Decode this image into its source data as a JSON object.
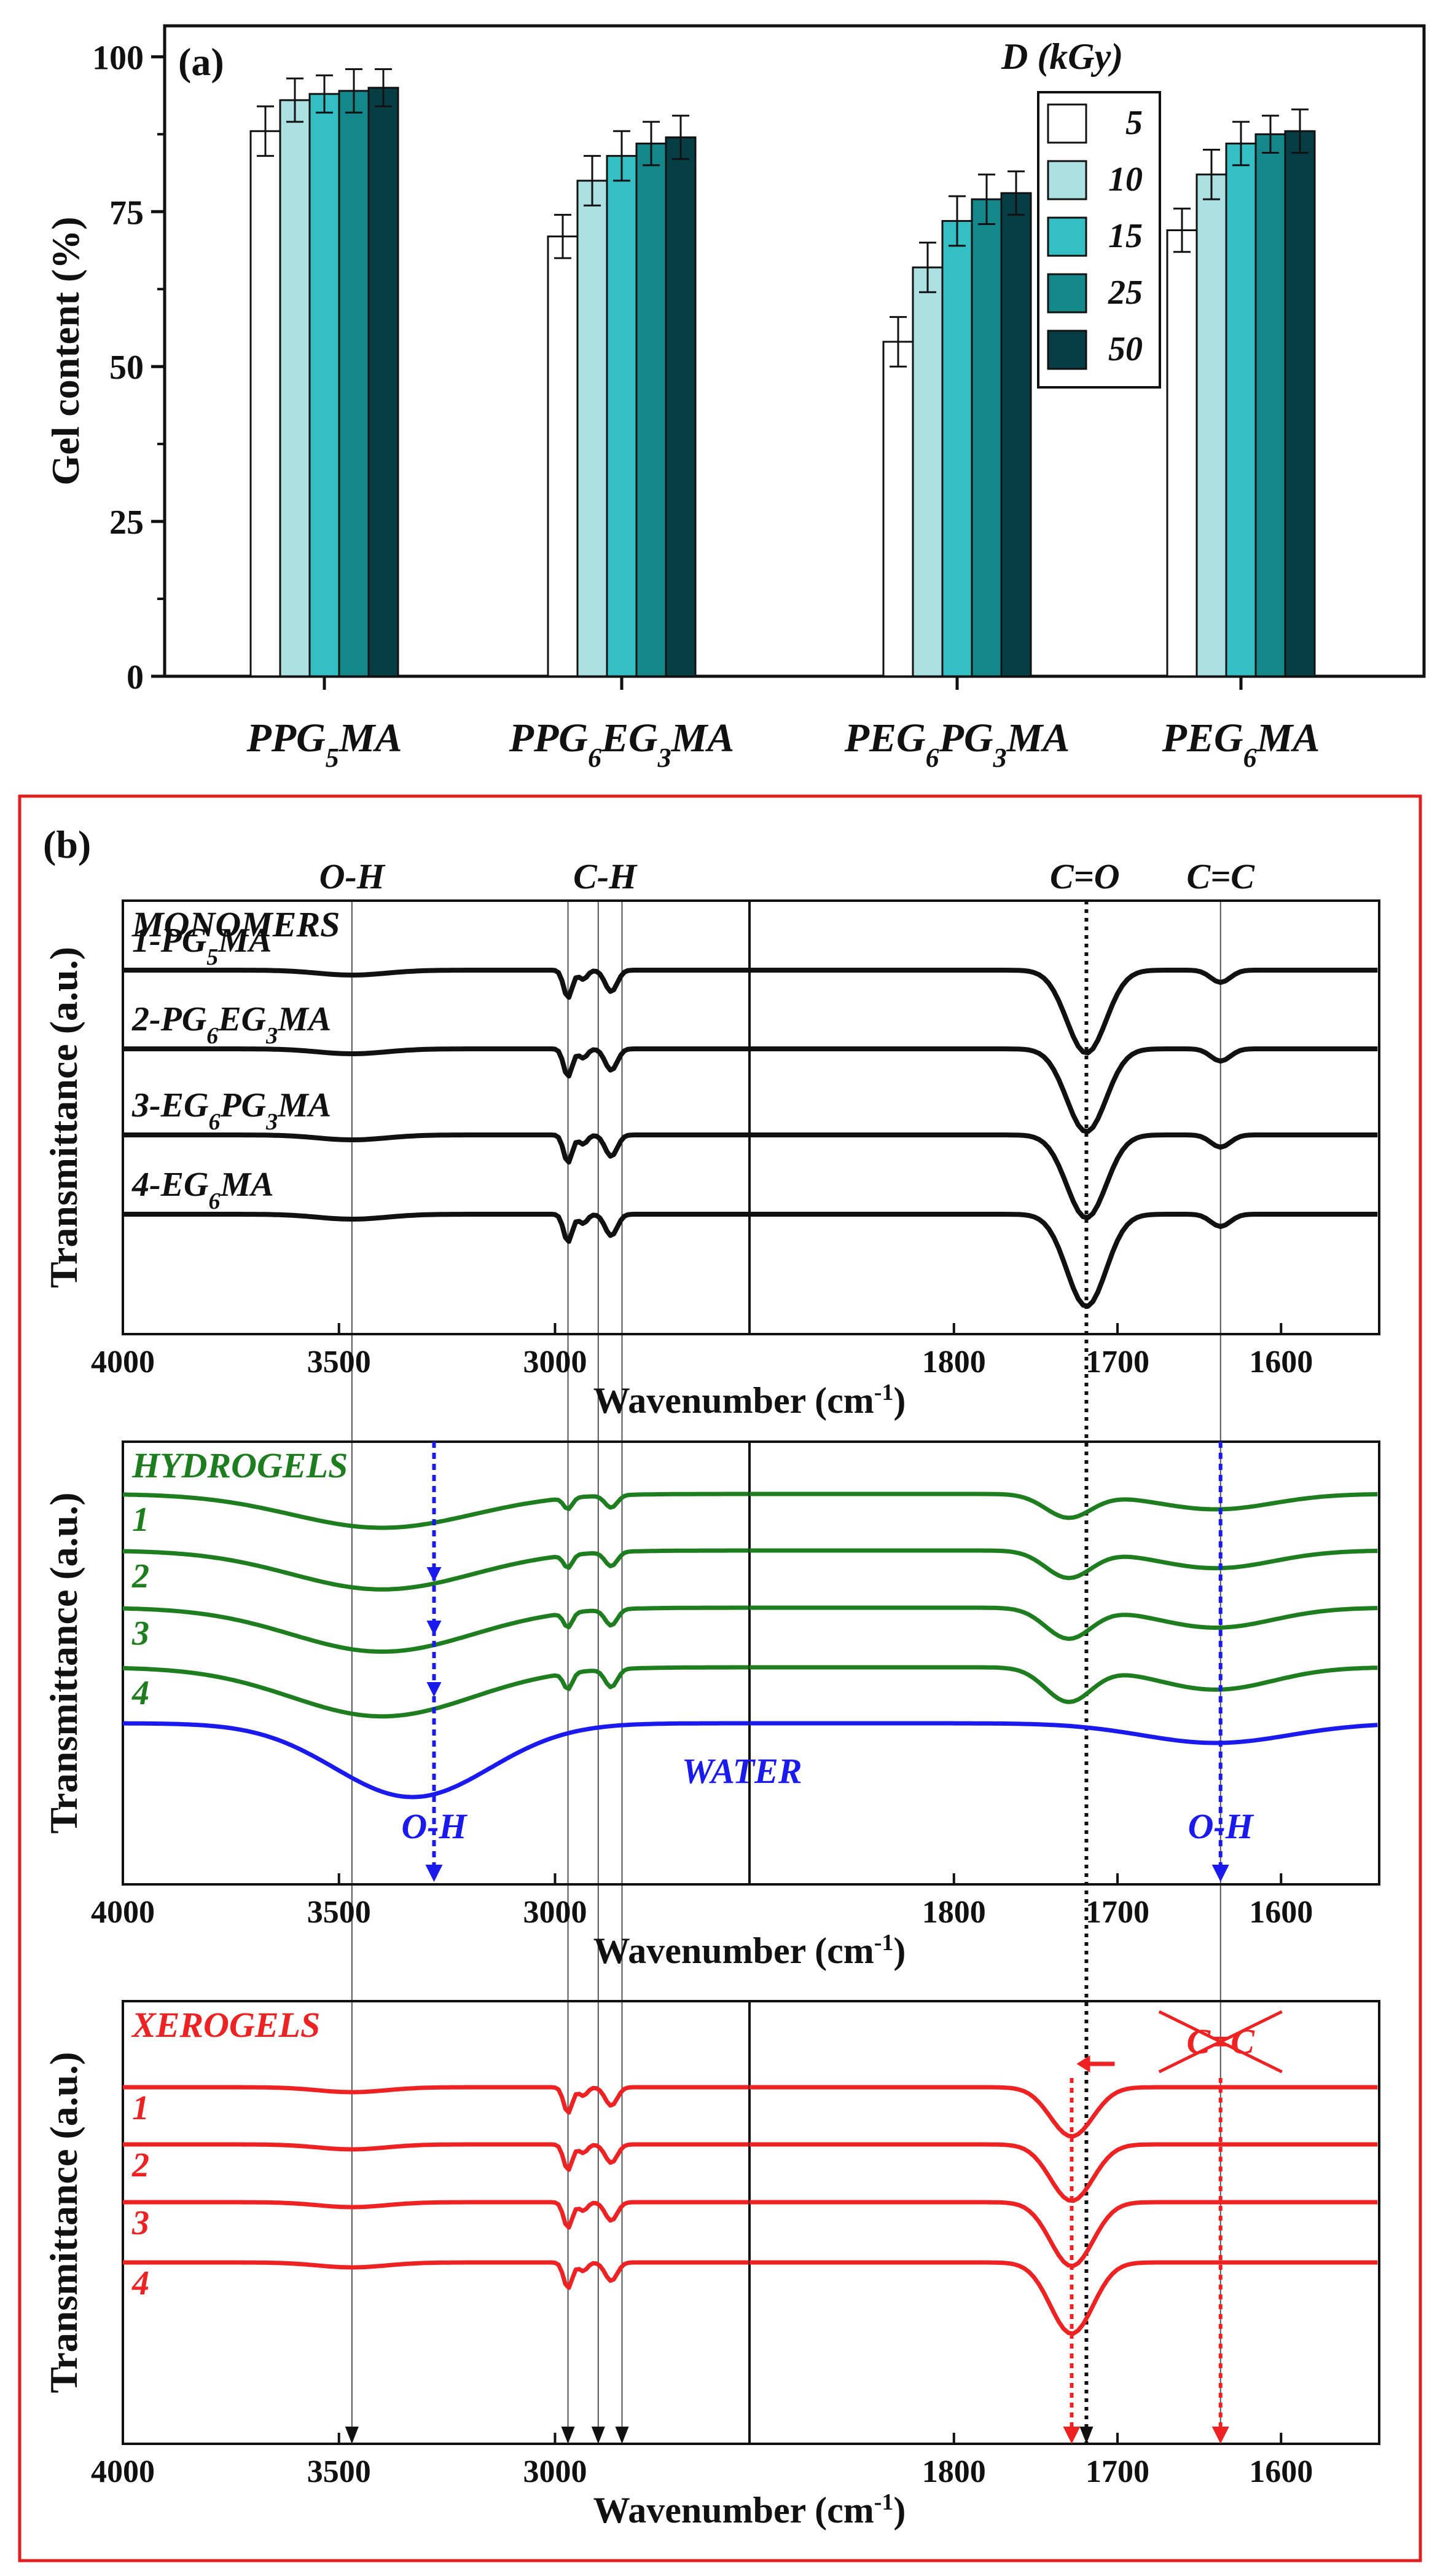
{
  "chart_data": [
    {
      "type": "bar",
      "panel_label": "(a)",
      "ylabel": "Gel content  (%)",
      "xlabel": "",
      "ylim": [
        0,
        105
      ],
      "yticks": [
        0,
        25,
        50,
        75,
        100
      ],
      "legend_title": "D (kGy)",
      "legend_position": "top-right",
      "categories": [
        {
          "base": "PPG",
          "sub": "5",
          "tail": "MA"
        },
        {
          "base": "PPG",
          "sub": "6",
          "mid": "EG",
          "sub2": "3",
          "tail": "MA"
        },
        {
          "base": "PEG",
          "sub": "6",
          "mid": "PG",
          "sub2": "3",
          "tail": "MA"
        },
        {
          "base": "PEG",
          "sub": "6",
          "tail": "MA"
        }
      ],
      "series": [
        {
          "name": "5",
          "color": "#ffffff",
          "values": [
            88,
            71,
            54,
            72
          ],
          "errors": [
            4,
            3.5,
            4,
            3.5
          ]
        },
        {
          "name": "10",
          "color": "#ade0e2",
          "values": [
            93,
            80,
            66,
            81
          ],
          "errors": [
            3.5,
            4,
            4,
            4
          ]
        },
        {
          "name": "15",
          "color": "#33bfc4",
          "values": [
            94,
            84,
            73.5,
            86
          ],
          "errors": [
            3,
            4,
            4,
            3.5
          ]
        },
        {
          "name": "25",
          "color": "#14878b",
          "values": [
            94.5,
            86,
            77,
            87.5
          ],
          "errors": [
            3.5,
            3.5,
            4,
            3
          ]
        },
        {
          "name": "50",
          "color": "#073e45",
          "values": [
            95,
            87,
            78,
            88
          ],
          "errors": [
            3,
            3.5,
            3.5,
            3.5
          ]
        }
      ]
    },
    {
      "type": "line",
      "panel_label": "(b)",
      "xlabel": "Wavenumber (cm",
      "xlabel_sup": "-1",
      "xlabel_close": ")",
      "ylabel": "Transmittance (a.u.)",
      "xaxis_break": true,
      "xticks_left": [
        "4000",
        "3500",
        "3000"
      ],
      "xticks_right": [
        "1800",
        "1700",
        "1600"
      ],
      "x_left_range": [
        4000,
        2550
      ],
      "x_right_range": [
        1925,
        1540
      ],
      "band_labels": [
        {
          "text": "O-H",
          "x": 3470
        },
        {
          "text": "C-H",
          "x": 2920
        },
        {
          "text": "C=O",
          "x": 1720
        },
        {
          "text": "C=C",
          "x": 1637
        }
      ],
      "reference_lines": [
        {
          "x": 3470,
          "style": "thin"
        },
        {
          "x": 2970,
          "style": "thin"
        },
        {
          "x": 2900,
          "style": "thin"
        },
        {
          "x": 2845,
          "style": "thin"
        },
        {
          "x": 1719,
          "style": "dotted"
        },
        {
          "x": 1637,
          "style": "thin"
        }
      ],
      "subplots": [
        {
          "title": "MONOMERS",
          "color": "#111111",
          "labels": [
            {
              "base": "1-PG",
              "sub": "5",
              "tail": "MA"
            },
            {
              "base": "2-PG",
              "sub": "6",
              "mid": "EG",
              "sub2": "3",
              "tail": "MA"
            },
            {
              "base": "3-EG",
              "sub": "6",
              "mid": "PG",
              "sub2": "3",
              "tail": "MA"
            },
            {
              "base": "4-EG",
              "sub": "6",
              "tail": "MA"
            }
          ]
        },
        {
          "title": "HYDROGELS",
          "color": "#1e7d1e",
          "water_label": "WATER",
          "water_color": "#1a1aee",
          "oh_label": "O-H",
          "labels": [
            "1",
            "2",
            "3",
            "4"
          ]
        },
        {
          "title": "XEROGELS",
          "color": "#ee2222",
          "crossed_label": "C=C",
          "labels": [
            "1",
            "2",
            "3",
            "4"
          ]
        }
      ]
    }
  ]
}
